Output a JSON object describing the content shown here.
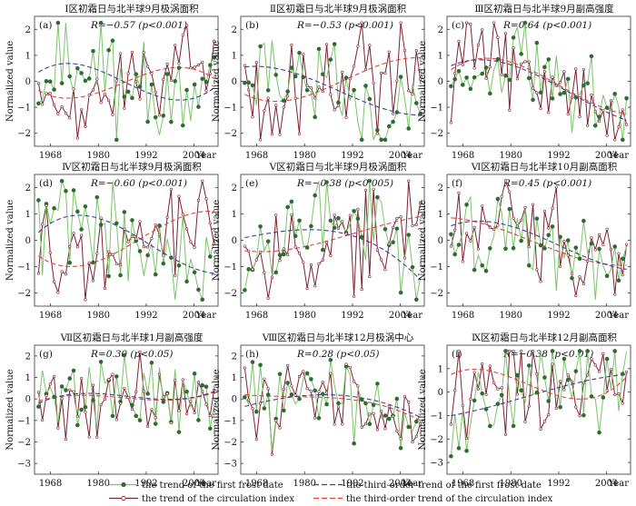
{
  "figure": {
    "x_axis_title": "Year",
    "y_axis_title": "Normalized value",
    "legend": [
      {
        "key": "first_frost",
        "label": "the trend of the first frost date",
        "color": "#3d9a3d",
        "style": "solid-dot"
      },
      {
        "key": "first_frost_fit",
        "label": "the third-order trend of the first frost date",
        "color": "#3b3f98",
        "style": "dashed"
      },
      {
        "key": "circulation",
        "label": "the trend of the circulation index",
        "color": "#7b2232",
        "style": "solid-circle"
      },
      {
        "key": "circulation_fit",
        "label": "the third-order trend of the circulation index",
        "color": "#e0413d",
        "style": "dashed"
      }
    ]
  },
  "chart_data": [
    {
      "type": "line",
      "panel": "(a)",
      "title": "Ⅰ区初霜日与北半球9月极涡面积",
      "stat": "R=−0.57 (p<0.001)",
      "ylim": [
        -2.5,
        2.5
      ],
      "yticks": [
        -2,
        -1,
        0,
        1,
        2
      ],
      "xticks": [
        "1968",
        "1980",
        "1992",
        "2004"
      ],
      "start_year": 1964,
      "seed": 11,
      "ff_fit": [
        0.35,
        0.45,
        -0.55,
        -0.25
      ],
      "ci_fit": [
        -0.35,
        -0.45,
        0.4,
        0.1
      ],
      "amp": 1.0
    },
    {
      "type": "line",
      "panel": "(b)",
      "title": "Ⅱ区初霜日与北半球9月极涡面积",
      "stat": "R=−0.53 (p<0.001)",
      "ylim": [
        -2.5,
        2.5
      ],
      "yticks": [
        -2,
        -1,
        0,
        1,
        2
      ],
      "xticks": [
        "1968",
        "1980",
        "1992",
        "2004"
      ],
      "start_year": 1964,
      "seed": 23,
      "ff_fit": [
        0.55,
        0.2,
        -0.75,
        -1.3
      ],
      "ci_fit": [
        -0.5,
        -0.6,
        0.35,
        0.9
      ],
      "amp": 1.0
    },
    {
      "type": "line",
      "panel": "(c)",
      "title": "Ⅲ区初霜日与北半球9月副高强度",
      "stat": "R=0.64 (p<0.001)",
      "ylim": [
        -2.5,
        2.5
      ],
      "yticks": [
        -2,
        -1,
        0,
        1,
        2
      ],
      "xticks": [
        "1968",
        "1980",
        "1992",
        "2004"
      ],
      "start_year": 1964,
      "seed": 37,
      "ff_fit": [
        0.6,
        0.65,
        -0.4,
        -1.5
      ],
      "ci_fit": [
        0.45,
        0.75,
        -0.35,
        -1.25
      ],
      "amp": 0.9
    },
    {
      "type": "line",
      "panel": "(d)",
      "title": "Ⅳ区初霜日与北半球9月极涡面积",
      "stat": "R=−0.60 (p<0.001)",
      "ylim": [
        -2.5,
        2.5
      ],
      "yticks": [
        -2,
        -1,
        0,
        1,
        2
      ],
      "xticks": [
        "1968",
        "1980",
        "1992",
        "2004"
      ],
      "start_year": 1964,
      "seed": 41,
      "ff_fit": [
        0.3,
        0.85,
        -0.3,
        -1.25
      ],
      "ci_fit": [
        -0.6,
        -0.8,
        0.4,
        1.1
      ],
      "amp": 1.0
    },
    {
      "type": "line",
      "panel": "(e)",
      "title": "Ⅴ区初霜日与北半球9月极涡面积",
      "stat": "R=−0.38 (p<0.005)",
      "ylim": [
        -2.5,
        2.5
      ],
      "yticks": [
        -2,
        -1,
        0,
        1,
        2
      ],
      "xticks": [
        "1968",
        "1980",
        "1992",
        "2004"
      ],
      "start_year": 1964,
      "seed": 53,
      "ff_fit": [
        0.1,
        0.4,
        0.05,
        -1.5
      ],
      "ci_fit": [
        -0.4,
        -0.25,
        0.35,
        0.9
      ],
      "amp": 1.0
    },
    {
      "type": "line",
      "panel": "(f)",
      "title": "Ⅵ区初霜日与北半球10月副高面积",
      "stat": "R=0.45 (p<0.001)",
      "ylim": [
        -2.5,
        2.5
      ],
      "yticks": [
        -2,
        -1,
        0,
        1,
        2
      ],
      "xticks": [
        "1968",
        "1980",
        "1992",
        "2004"
      ],
      "start_year": 1964,
      "seed": 67,
      "ff_fit": [
        0.55,
        0.55,
        -0.35,
        -1.1
      ],
      "ci_fit": [
        0.85,
        0.3,
        -0.55,
        -0.95
      ],
      "amp": 0.9
    },
    {
      "type": "line",
      "panel": "(g)",
      "title": "Ⅶ区初霜日与北半球1月副高强度",
      "stat": "R=0.30 (p<0.05)",
      "ylim": [
        -3.5,
        2.5
      ],
      "yticks": [
        -3,
        -2,
        -1,
        0,
        1,
        2
      ],
      "xticks": [
        "1968",
        "1980",
        "1992",
        "2004"
      ],
      "start_year": 1964,
      "seed": 71,
      "ff_fit": [
        -0.2,
        0.25,
        0.0,
        0.35
      ],
      "ci_fit": [
        -0.1,
        0.15,
        -0.05,
        0.3
      ],
      "amp": 1.0
    },
    {
      "type": "line",
      "panel": "(h)",
      "title": "Ⅷ区初霜日与北半球12月极涡中心",
      "stat": "R=0.28 (p<0.05)",
      "ylim": [
        -3.5,
        2.5
      ],
      "yticks": [
        -3,
        -2,
        -1,
        0,
        1,
        2
      ],
      "xticks": [
        "1968",
        "1980",
        "1992",
        "2004"
      ],
      "start_year": 1964,
      "seed": 83,
      "ff_fit": [
        -0.35,
        0.15,
        0.05,
        -0.85
      ],
      "ci_fit": [
        0.2,
        0.1,
        -0.1,
        -1.0
      ],
      "amp": 1.0
    },
    {
      "type": "line",
      "panel": "(i)",
      "title": "Ⅸ区初霜日与北半球12月副高面积",
      "stat": "R=−0.38 (p<0.01)",
      "ylim": [
        -3.5,
        2.0
      ],
      "yticks": [
        -3,
        -2,
        -1,
        0,
        1
      ],
      "xticks": [
        "1968",
        "1980",
        "1992",
        "2004"
      ],
      "start_year": 1964,
      "seed": 97,
      "ff_fit": [
        -1.0,
        -0.4,
        0.3,
        0.75
      ],
      "ci_fit": [
        0.75,
        0.65,
        -0.25,
        0.65
      ],
      "amp": 1.0
    }
  ]
}
